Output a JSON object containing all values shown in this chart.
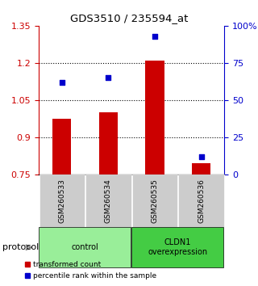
{
  "title": "GDS3510 / 235594_at",
  "samples": [
    "GSM260533",
    "GSM260534",
    "GSM260535",
    "GSM260536"
  ],
  "red_bar_values": [
    0.975,
    1.0,
    1.21,
    0.795
  ],
  "blue_dot_values": [
    62,
    65,
    93,
    12
  ],
  "ylim_left": [
    0.75,
    1.35
  ],
  "ylim_right": [
    0,
    100
  ],
  "yticks_left": [
    0.75,
    0.9,
    1.05,
    1.2,
    1.35
  ],
  "yticks_left_labels": [
    "0.75",
    "0.9",
    "1.05",
    "1.2",
    "1.35"
  ],
  "yticks_right": [
    0,
    25,
    50,
    75,
    100
  ],
  "yticks_right_labels": [
    "0",
    "25",
    "50",
    "75",
    "100%"
  ],
  "hlines": [
    0.9,
    1.05,
    1.2
  ],
  "bar_color": "#cc0000",
  "dot_color": "#0000cc",
  "bar_bottom": 0.75,
  "groups": [
    {
      "label": "control",
      "start": 0,
      "end": 2,
      "color": "#99ee99"
    },
    {
      "label": "CLDN1\noverexpression",
      "start": 2,
      "end": 4,
      "color": "#44cc44"
    }
  ],
  "group_label": "protocol",
  "legend_red": "transformed count",
  "legend_blue": "percentile rank within the sample",
  "tick_area_bg": "#cccccc",
  "bar_width": 0.4
}
